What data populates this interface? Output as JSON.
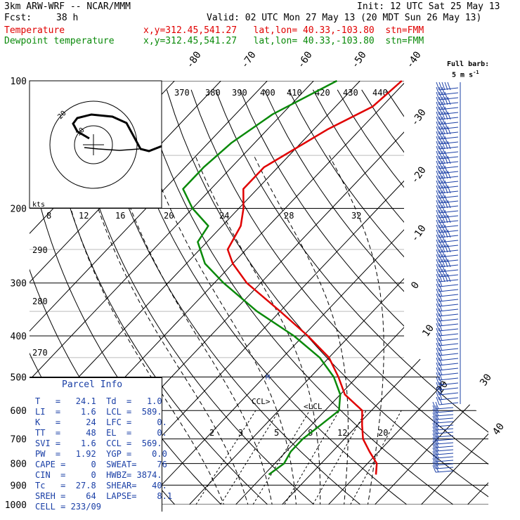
{
  "header": {
    "model": "3km ARW-WRF -- NCAR/MMM",
    "init": "Init: 12 UTC Sat 25 May 13",
    "fcst_label": "Fcst:",
    "fcst_value": "38 h",
    "valid": "Valid: 02 UTC Mon 27 May 13 (20 MDT Sun 26 May 13)",
    "lines": [
      {
        "name": "Temperature",
        "info": "x,y=312.45,541.27   lat,lon= 40.33,-103.80  stn=FMM",
        "color": "#e00000"
      },
      {
        "name": "Dewpoint temperature",
        "info": "x,y=312.45,541.27   lat,lon= 40.33,-103.80  stn=FMM",
        "color": "#0a8a0a"
      }
    ]
  },
  "barb_legend": {
    "title": "Full barb:",
    "value": "5 m s",
    "exp": "-1"
  },
  "chart_data": {
    "type": "line",
    "title": "",
    "ylabel": "",
    "pressure_ticks": [
      100,
      200,
      300,
      400,
      500,
      600,
      700,
      800,
      900,
      1000
    ],
    "isotherm_labels": [
      "-80",
      "-70",
      "-60",
      "-50",
      "-40",
      "-30",
      "-20",
      "-10",
      "0",
      "10",
      "20",
      "30",
      "40"
    ],
    "theta_labels": [
      "370",
      "380",
      "390",
      "400",
      "410",
      "420",
      "430",
      "440"
    ],
    "theta_left_labels": [
      "290",
      "280",
      "270"
    ],
    "mixing_ratio_labels": [
      "2",
      "3",
      "5",
      "8",
      "12",
      "20"
    ],
    "series": [
      {
        "name": "Temperature",
        "color": "#e00000",
        "points": [
          [
            100,
            -51
          ],
          [
            115,
            -52
          ],
          [
            130,
            -57
          ],
          [
            160,
            -63
          ],
          [
            180,
            -63
          ],
          [
            200,
            -59
          ],
          [
            220,
            -56
          ],
          [
            250,
            -54
          ],
          [
            270,
            -50
          ],
          [
            300,
            -43
          ],
          [
            350,
            -30
          ],
          [
            400,
            -19
          ],
          [
            450,
            -10
          ],
          [
            500,
            -4
          ],
          [
            550,
            1
          ],
          [
            600,
            8
          ],
          [
            650,
            11
          ],
          [
            700,
            14
          ],
          [
            750,
            18
          ],
          [
            800,
            22
          ],
          [
            850,
            24.1
          ]
        ]
      },
      {
        "name": "Dewpoint temperature",
        "color": "#0a8a0a",
        "points": [
          [
            100,
            -65
          ],
          [
            120,
            -72
          ],
          [
            140,
            -75
          ],
          [
            160,
            -76
          ],
          [
            180,
            -76
          ],
          [
            200,
            -70
          ],
          [
            220,
            -63
          ],
          [
            240,
            -62
          ],
          [
            270,
            -56
          ],
          [
            300,
            -48
          ],
          [
            350,
            -35
          ],
          [
            400,
            -22
          ],
          [
            450,
            -12
          ],
          [
            500,
            -5
          ],
          [
            550,
            0
          ],
          [
            600,
            3
          ],
          [
            650,
            2
          ],
          [
            700,
            1
          ],
          [
            750,
            1
          ],
          [
            800,
            2
          ],
          [
            850,
            1
          ]
        ]
      }
    ],
    "hodograph": {
      "rings": [
        "10",
        "20"
      ],
      "speed_labels": [
        "kts",
        "8",
        "12",
        "16",
        "20",
        "24",
        "28",
        "32"
      ]
    },
    "annotations": [
      "CCL",
      "LCL",
      "M"
    ]
  },
  "parcel_info": {
    "title": "Parcel Info",
    "rows": [
      "T   =   24.1  Td  =   1.0",
      "LI  =    1.6  LCL =  589.",
      "K   =     24  LFC =     0.",
      "TT  =     48  EL  =     0.",
      "SVI =    1.6  CCL =  569.",
      "PW  =   1.92  YGP =    0.0",
      "CAPE =     0  SWEAT=    76",
      "CIN  =     0  HWBZ= 3874.",
      "Tc   =  27.8  SHEAR=   40.",
      "SREH =    64  LAPSE=    8.1",
      "CELL = 233/09"
    ]
  }
}
